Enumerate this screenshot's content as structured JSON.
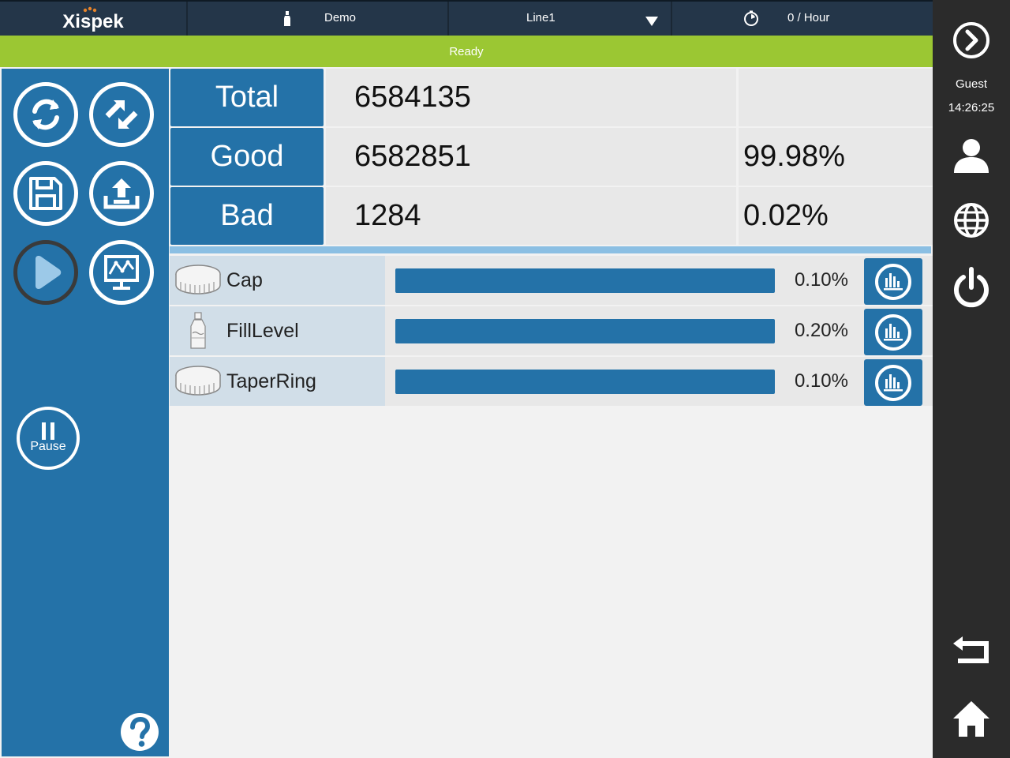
{
  "header": {
    "brand": "Xispek",
    "product_name": "Demo",
    "line_name": "Line1",
    "rate": "0 / Hour"
  },
  "status": "Ready",
  "user": {
    "name": "Guest",
    "time": "14:26:25"
  },
  "summary": {
    "total_label": "Total",
    "total_value": "6584135",
    "good_label": "Good",
    "good_value": "6582851",
    "good_pct": "99.98%",
    "bad_label": "Bad",
    "bad_value": "1284",
    "bad_pct": "0.02%"
  },
  "defects": [
    {
      "name": "Cap",
      "percent": "0.10%",
      "icon": "cap-icon",
      "bar_level": 1.0
    },
    {
      "name": "FillLevel",
      "percent": "0.20%",
      "icon": "bottle-icon",
      "bar_level": 1.0
    },
    {
      "name": "TaperRing",
      "percent": "0.10%",
      "icon": "cap-icon",
      "bar_level": 1.0
    }
  ],
  "left_panel": {
    "pause_label": "Pause"
  },
  "colors": {
    "header_bg": "#243649",
    "status_green": "#9bc733",
    "primary_blue": "#2472a8",
    "sidebar_dark": "#2b2b2b"
  }
}
